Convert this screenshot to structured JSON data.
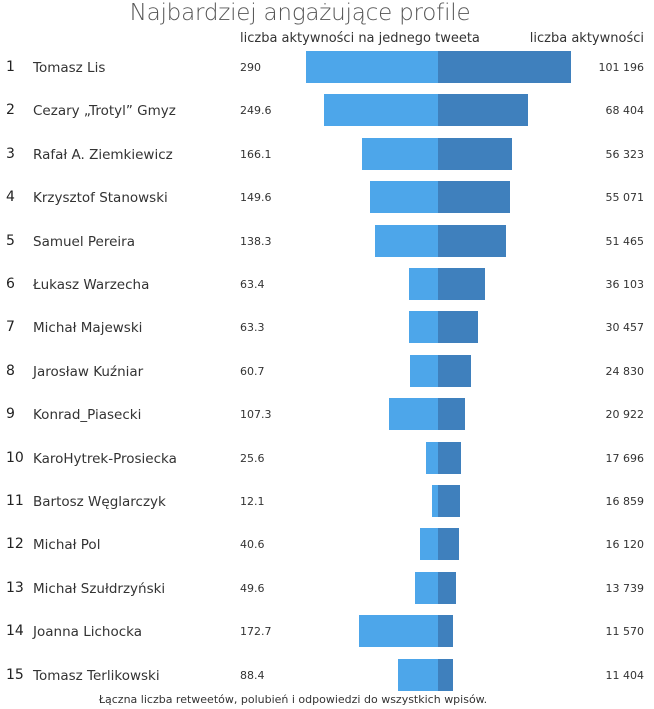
{
  "chart_data": {
    "type": "bar",
    "title": "Najbardziej angażujące profile",
    "header_left": "liczba aktywności na jednego tweeta",
    "header_right": "liczba aktywności",
    "footnote": "Łączna liczba retweetów, polubień i odpowiedzi do wszystkich wpisów.",
    "rows": [
      {
        "rank": "1",
        "name": "Tomasz Lis",
        "per_tweet": 290,
        "per_tweet_label": "290",
        "total": 101196,
        "total_label": "101 196"
      },
      {
        "rank": "2",
        "name": "Cezary „Trotyl” Gmyz",
        "per_tweet": 249.6,
        "per_tweet_label": "249.6",
        "total": 68404,
        "total_label": "68 404"
      },
      {
        "rank": "3",
        "name": "Rafał A. Ziemkiewicz",
        "per_tweet": 166.1,
        "per_tweet_label": "166.1",
        "total": 56323,
        "total_label": "56 323"
      },
      {
        "rank": "4",
        "name": "Krzysztof Stanowski",
        "per_tweet": 149.6,
        "per_tweet_label": "149.6",
        "total": 55071,
        "total_label": "55 071"
      },
      {
        "rank": "5",
        "name": "Samuel Pereira",
        "per_tweet": 138.3,
        "per_tweet_label": "138.3",
        "total": 51465,
        "total_label": "51 465"
      },
      {
        "rank": "6",
        "name": "Łukasz Warzecha",
        "per_tweet": 63.4,
        "per_tweet_label": "63.4",
        "total": 36103,
        "total_label": "36 103"
      },
      {
        "rank": "7",
        "name": "Michał Majewski",
        "per_tweet": 63.3,
        "per_tweet_label": "63.3",
        "total": 30457,
        "total_label": "30 457"
      },
      {
        "rank": "8",
        "name": "Jarosław Kuźniar",
        "per_tweet": 60.7,
        "per_tweet_label": "60.7",
        "total": 24830,
        "total_label": "24 830"
      },
      {
        "rank": "9",
        "name": "Konrad_Piasecki",
        "per_tweet": 107.3,
        "per_tweet_label": "107.3",
        "total": 20922,
        "total_label": "20 922"
      },
      {
        "rank": "10",
        "name": "KaroHytrek-Prosiecka",
        "per_tweet": 25.6,
        "per_tweet_label": "25.6",
        "total": 17696,
        "total_label": "17 696"
      },
      {
        "rank": "11",
        "name": "Bartosz Węglarczyk",
        "per_tweet": 12.1,
        "per_tweet_label": "12.1",
        "total": 16859,
        "total_label": "16 859"
      },
      {
        "rank": "12",
        "name": "Michał Pol",
        "per_tweet": 40.6,
        "per_tweet_label": "40.6",
        "total": 16120,
        "total_label": "16 120"
      },
      {
        "rank": "13",
        "name": "Michał Szułdrzyński",
        "per_tweet": 49.6,
        "per_tweet_label": "49.6",
        "total": 13739,
        "total_label": "13 739"
      },
      {
        "rank": "14",
        "name": "Joanna Lichocka",
        "per_tweet": 172.7,
        "per_tweet_label": "172.7",
        "total": 11570,
        "total_label": "11 570"
      },
      {
        "rank": "15",
        "name": "Tomasz Terlikowski",
        "per_tweet": 88.4,
        "per_tweet_label": "88.4",
        "total": 11404,
        "total_label": "11 404"
      }
    ],
    "colors": {
      "per_tweet_bar": "#4da6ea",
      "total_bar": "#3f80bd"
    }
  }
}
